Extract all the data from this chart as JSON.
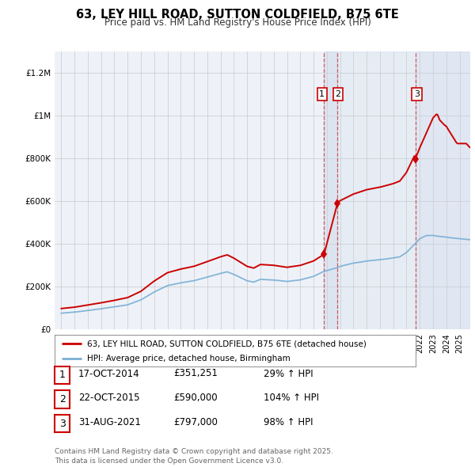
{
  "title": "63, LEY HILL ROAD, SUTTON COLDFIELD, B75 6TE",
  "subtitle": "Price paid vs. HM Land Registry's House Price Index (HPI)",
  "property_label": "63, LEY HILL ROAD, SUTTON COLDFIELD, B75 6TE (detached house)",
  "hpi_label": "HPI: Average price, detached house, Birmingham",
  "property_color": "#cc0000",
  "hpi_color": "#7aafd4",
  "background_color": "#eef2f8",
  "sale_dates_decimal": [
    2014.79,
    2015.8,
    2021.66
  ],
  "sale_prices": [
    351251,
    590000,
    797000
  ],
  "sale_labels": [
    "1",
    "2",
    "3"
  ],
  "sale_table": [
    {
      "num": "1",
      "date": "17-OCT-2014",
      "price": "£351,251",
      "change": "29% ↑ HPI"
    },
    {
      "num": "2",
      "date": "22-OCT-2015",
      "price": "£590,000",
      "change": "104% ↑ HPI"
    },
    {
      "num": "3",
      "date": "31-AUG-2021",
      "price": "£797,000",
      "change": "98% ↑ HPI"
    }
  ],
  "footnote": "Contains HM Land Registry data © Crown copyright and database right 2025.\nThis data is licensed under the Open Government Licence v3.0.",
  "ylim": [
    0,
    1300000
  ],
  "xlim_start": 1994.5,
  "xlim_end": 2025.8
}
